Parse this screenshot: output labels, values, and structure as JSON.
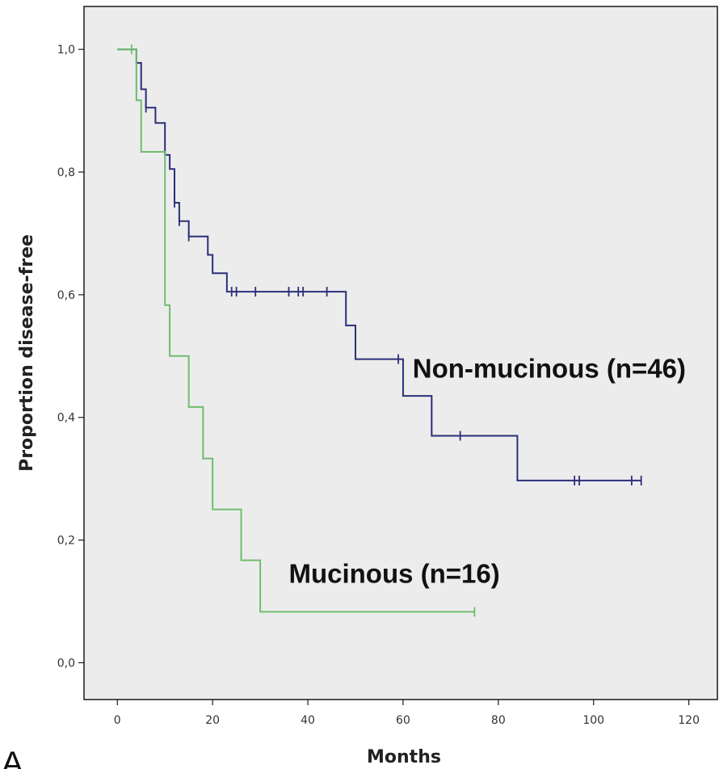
{
  "chart_data": {
    "type": "line",
    "subtype": "kaplan-meier-step",
    "title": "",
    "xlabel": "Months",
    "ylabel": "Proportion disease-free",
    "xlim": [
      -7,
      126
    ],
    "ylim": [
      -0.06,
      1.07
    ],
    "xticks": [
      0,
      20,
      40,
      60,
      80,
      100,
      120
    ],
    "xtick_labels": [
      "0",
      "20",
      "40",
      "60",
      "80",
      "100",
      "120"
    ],
    "yticks": [
      0.0,
      0.2,
      0.4,
      0.6,
      0.8,
      1.0
    ],
    "ytick_labels": [
      "0,0",
      "0,2",
      "0,4",
      "0,6",
      "0,8",
      "1,0"
    ],
    "grid": false,
    "plot_background": "#ececec",
    "panel_label": "A",
    "series": [
      {
        "name": "Non-mucinous (n=46)",
        "color": "#2b2f78",
        "steps": [
          [
            0,
            1.0
          ],
          [
            4,
            0.978
          ],
          [
            5,
            0.935
          ],
          [
            6,
            0.905
          ],
          [
            8,
            0.88
          ],
          [
            10,
            0.828
          ],
          [
            11,
            0.805
          ],
          [
            12,
            0.75
          ],
          [
            13,
            0.72
          ],
          [
            15,
            0.695
          ],
          [
            19,
            0.665
          ],
          [
            20,
            0.635
          ],
          [
            23,
            0.605
          ],
          [
            48,
            0.55
          ],
          [
            50,
            0.495
          ],
          [
            60,
            0.435
          ],
          [
            66,
            0.37
          ],
          [
            84,
            0.297
          ],
          [
            110,
            0.297
          ]
        ],
        "censored": [
          [
            6,
            0.905
          ],
          [
            12,
            0.75
          ],
          [
            13,
            0.72
          ],
          [
            15,
            0.695
          ],
          [
            24,
            0.605
          ],
          [
            25,
            0.605
          ],
          [
            29,
            0.605
          ],
          [
            36,
            0.605
          ],
          [
            38,
            0.605
          ],
          [
            39,
            0.605
          ],
          [
            44,
            0.605
          ],
          [
            59,
            0.495
          ],
          [
            72,
            0.37
          ],
          [
            96,
            0.297
          ],
          [
            97,
            0.297
          ],
          [
            108,
            0.297
          ],
          [
            110,
            0.297
          ]
        ],
        "label": "Non-mucinous (n=46)",
        "label_x": 62,
        "label_y": 0.465
      },
      {
        "name": "Mucinous (n=16)",
        "color": "#6fbd6f",
        "steps": [
          [
            0,
            1.0
          ],
          [
            4,
            0.917
          ],
          [
            5,
            0.833
          ],
          [
            10,
            0.583
          ],
          [
            11,
            0.5
          ],
          [
            15,
            0.417
          ],
          [
            18,
            0.333
          ],
          [
            20,
            0.25
          ],
          [
            26,
            0.167
          ],
          [
            30,
            0.083
          ],
          [
            75,
            0.083
          ]
        ],
        "censored": [
          [
            3,
            1.0
          ],
          [
            75,
            0.083
          ]
        ],
        "label": "Mucinous (n=16)",
        "label_x": 36,
        "label_y": 0.13
      }
    ]
  }
}
